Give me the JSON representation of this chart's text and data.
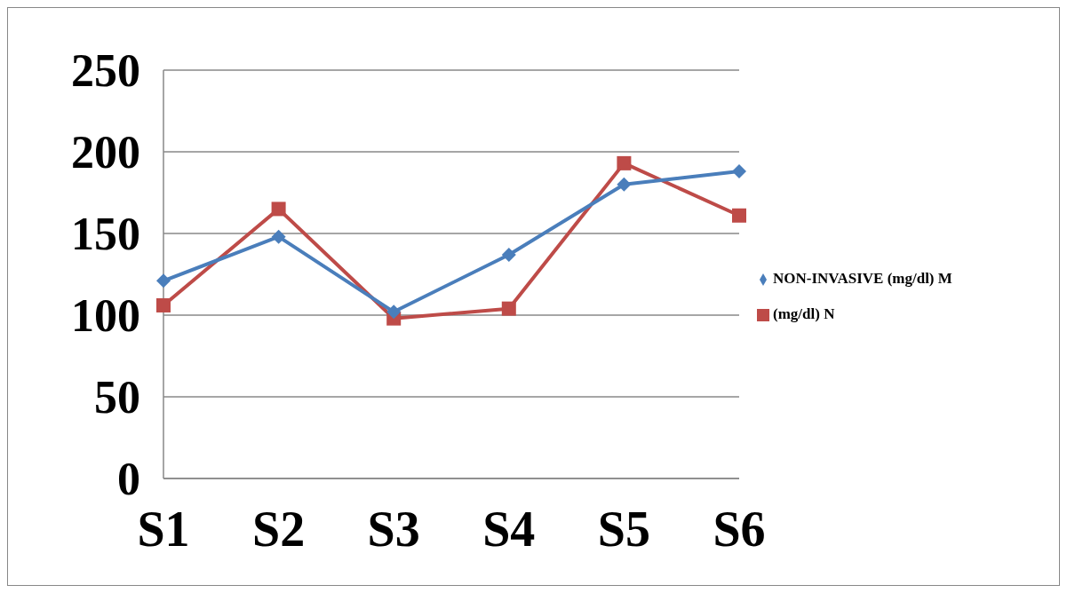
{
  "chart_data": {
    "type": "line",
    "categories": [
      "S1",
      "S2",
      "S3",
      "S4",
      "S5",
      "S6"
    ],
    "series": [
      {
        "name": "NON-INVASIVE (mg/dl) M",
        "color": "#4a7ebb",
        "marker": "diamond",
        "values": [
          121,
          148,
          102,
          137,
          180,
          188
        ]
      },
      {
        "name": "(mg/dl) N",
        "color": "#be4b48",
        "marker": "square",
        "values": [
          106,
          165,
          98,
          104,
          193,
          161
        ]
      }
    ],
    "ylim": [
      0,
      250
    ],
    "yticks": [
      0,
      50,
      100,
      150,
      200,
      250
    ],
    "grid": "y",
    "legend": "right"
  }
}
